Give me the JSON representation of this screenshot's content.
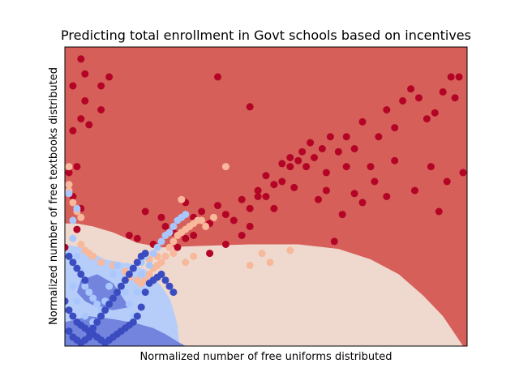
{
  "chart_data": {
    "type": "scatter",
    "title": "Predicting total enrollment in Govt schools based on incentives",
    "xlabel": "Normalized number of free uniforms distributed",
    "ylabel": "Normalized number of free textbooks distributed",
    "ticks_visible": false,
    "grid": false,
    "legend": "none",
    "classes": [
      {
        "id": 0,
        "point_color": "#3b4cc0",
        "region_color": "#7284de"
      },
      {
        "id": 1,
        "point_color": "#aac7fd",
        "region_color": "#b6cdf9"
      },
      {
        "id": 2,
        "point_color": "#f7b89c",
        "region_color": "#efd9ce"
      },
      {
        "id": 3,
        "point_color": "#b40426",
        "region_color": "#d65f5a"
      }
    ],
    "points": {
      "class_3": [
        [
          0.04,
          0.96
        ],
        [
          0.05,
          0.91
        ],
        [
          0.02,
          0.87
        ],
        [
          0.05,
          0.82
        ],
        [
          0.09,
          0.87
        ],
        [
          0.04,
          0.76
        ],
        [
          0.02,
          0.72
        ],
        [
          0.06,
          0.74
        ],
        [
          0.09,
          0.79
        ],
        [
          0.11,
          0.9
        ],
        [
          0.03,
          0.6
        ],
        [
          0.01,
          0.58
        ],
        [
          0.02,
          0.5
        ],
        [
          0.04,
          0.46
        ],
        [
          0.03,
          0.39
        ],
        [
          0.0,
          0.33
        ],
        [
          0.16,
          0.37
        ],
        [
          0.18,
          0.36
        ],
        [
          0.2,
          0.45
        ],
        [
          0.24,
          0.43
        ],
        [
          0.28,
          0.42
        ],
        [
          0.3,
          0.48
        ],
        [
          0.32,
          0.43
        ],
        [
          0.34,
          0.45
        ],
        [
          0.36,
          0.41
        ],
        [
          0.38,
          0.47
        ],
        [
          0.4,
          0.44
        ],
        [
          0.42,
          0.42
        ],
        [
          0.44,
          0.49
        ],
        [
          0.46,
          0.46
        ],
        [
          0.48,
          0.52
        ],
        [
          0.5,
          0.5
        ],
        [
          0.52,
          0.54
        ],
        [
          0.54,
          0.55
        ],
        [
          0.56,
          0.6
        ],
        [
          0.58,
          0.62
        ],
        [
          0.6,
          0.6
        ],
        [
          0.62,
          0.63
        ],
        [
          0.64,
          0.66
        ],
        [
          0.66,
          0.7
        ],
        [
          0.68,
          0.65
        ],
        [
          0.7,
          0.7
        ],
        [
          0.72,
          0.66
        ],
        [
          0.74,
          0.75
        ],
        [
          0.78,
          0.7
        ],
        [
          0.8,
          0.79
        ],
        [
          0.82,
          0.73
        ],
        [
          0.84,
          0.82
        ],
        [
          0.86,
          0.86
        ],
        [
          0.88,
          0.83
        ],
        [
          0.9,
          0.76
        ],
        [
          0.92,
          0.78
        ],
        [
          0.94,
          0.85
        ],
        [
          0.96,
          0.9
        ],
        [
          0.98,
          0.9
        ],
        [
          0.28,
          0.33
        ],
        [
          0.3,
          0.36
        ],
        [
          0.32,
          0.37
        ],
        [
          0.36,
          0.31
        ],
        [
          0.4,
          0.34
        ],
        [
          0.44,
          0.37
        ],
        [
          0.46,
          0.4
        ],
        [
          0.48,
          0.5
        ],
        [
          0.5,
          0.57
        ],
        [
          0.52,
          0.46
        ],
        [
          0.54,
          0.61
        ],
        [
          0.57,
          0.53
        ],
        [
          0.59,
          0.65
        ],
        [
          0.61,
          0.68
        ],
        [
          0.63,
          0.49
        ],
        [
          0.65,
          0.58
        ],
        [
          0.67,
          0.35
        ],
        [
          0.7,
          0.6
        ],
        [
          0.72,
          0.51
        ],
        [
          0.74,
          0.48
        ],
        [
          0.76,
          0.6
        ],
        [
          0.8,
          0.5
        ],
        [
          0.82,
          0.62
        ],
        [
          0.87,
          0.52
        ],
        [
          0.91,
          0.6
        ],
        [
          0.93,
          0.45
        ],
        [
          0.97,
          0.83
        ],
        [
          0.95,
          0.55
        ],
        [
          0.99,
          0.58
        ],
        [
          0.38,
          0.9
        ],
        [
          0.46,
          0.8
        ],
        [
          0.56,
          0.63
        ],
        [
          0.65,
          0.52
        ],
        [
          0.69,
          0.44
        ],
        [
          0.77,
          0.55
        ],
        [
          0.25,
          0.4
        ],
        [
          0.27,
          0.38
        ],
        [
          0.22,
          0.34
        ]
      ],
      "class_2": [
        [
          0.01,
          0.6
        ],
        [
          0.01,
          0.54
        ],
        [
          0.01,
          0.52
        ],
        [
          0.02,
          0.48
        ],
        [
          0.03,
          0.45
        ],
        [
          0.04,
          0.43
        ],
        [
          0.04,
          0.34
        ],
        [
          0.05,
          0.32
        ],
        [
          0.06,
          0.31
        ],
        [
          0.07,
          0.3
        ],
        [
          0.09,
          0.28
        ],
        [
          0.12,
          0.27
        ],
        [
          0.15,
          0.25
        ],
        [
          0.16,
          0.23
        ],
        [
          0.18,
          0.22
        ],
        [
          0.19,
          0.21
        ],
        [
          0.2,
          0.22
        ],
        [
          0.21,
          0.24
        ],
        [
          0.22,
          0.26
        ],
        [
          0.23,
          0.27
        ],
        [
          0.24,
          0.28
        ],
        [
          0.25,
          0.3
        ],
        [
          0.26,
          0.33
        ],
        [
          0.27,
          0.35
        ],
        [
          0.28,
          0.37
        ],
        [
          0.29,
          0.38
        ],
        [
          0.3,
          0.39
        ],
        [
          0.31,
          0.4
        ],
        [
          0.32,
          0.41
        ],
        [
          0.33,
          0.42
        ],
        [
          0.34,
          0.42
        ],
        [
          0.29,
          0.49
        ],
        [
          0.4,
          0.6
        ],
        [
          0.46,
          0.27
        ],
        [
          0.49,
          0.31
        ],
        [
          0.51,
          0.28
        ],
        [
          0.56,
          0.32
        ],
        [
          0.21,
          0.29
        ],
        [
          0.23,
          0.3
        ],
        [
          0.27,
          0.31
        ],
        [
          0.3,
          0.28
        ],
        [
          0.32,
          0.3
        ],
        [
          0.35,
          0.4
        ],
        [
          0.37,
          0.43
        ]
      ],
      "class_1": [
        [
          0.01,
          0.51
        ],
        [
          0.03,
          0.46
        ],
        [
          0.02,
          0.42
        ],
        [
          0.02,
          0.36
        ],
        [
          0.03,
          0.3
        ],
        [
          0.04,
          0.25
        ],
        [
          0.05,
          0.2
        ],
        [
          0.06,
          0.18
        ],
        [
          0.07,
          0.16
        ],
        [
          0.08,
          0.14
        ],
        [
          0.09,
          0.12
        ],
        [
          0.1,
          0.15
        ],
        [
          0.11,
          0.2
        ],
        [
          0.12,
          0.24
        ],
        [
          0.13,
          0.27
        ],
        [
          0.14,
          0.2
        ],
        [
          0.15,
          0.18
        ],
        [
          0.16,
          0.14
        ],
        [
          0.17,
          0.1
        ],
        [
          0.18,
          0.18
        ],
        [
          0.19,
          0.24
        ],
        [
          0.2,
          0.3
        ],
        [
          0.19,
          0.28
        ],
        [
          0.21,
          0.27
        ],
        [
          0.22,
          0.31
        ],
        [
          0.23,
          0.33
        ],
        [
          0.24,
          0.35
        ],
        [
          0.25,
          0.37
        ],
        [
          0.26,
          0.38
        ],
        [
          0.27,
          0.4
        ],
        [
          0.28,
          0.42
        ],
        [
          0.29,
          0.43
        ],
        [
          0.3,
          0.44
        ],
        [
          0.02,
          0.2
        ],
        [
          0.03,
          0.15
        ],
        [
          0.05,
          0.1
        ],
        [
          0.07,
          0.08
        ]
      ],
      "class_0": [
        [
          0.0,
          0.15
        ],
        [
          0.01,
          0.12
        ],
        [
          0.02,
          0.1
        ],
        [
          0.03,
          0.08
        ],
        [
          0.04,
          0.07
        ],
        [
          0.05,
          0.06
        ],
        [
          0.06,
          0.05
        ],
        [
          0.07,
          0.04
        ],
        [
          0.08,
          0.03
        ],
        [
          0.09,
          0.02
        ],
        [
          0.1,
          0.01
        ],
        [
          0.11,
          0.02
        ],
        [
          0.12,
          0.03
        ],
        [
          0.13,
          0.04
        ],
        [
          0.14,
          0.05
        ],
        [
          0.15,
          0.06
        ],
        [
          0.16,
          0.07
        ],
        [
          0.17,
          0.08
        ],
        [
          0.18,
          0.1
        ],
        [
          0.19,
          0.13
        ],
        [
          0.2,
          0.18
        ],
        [
          0.21,
          0.21
        ],
        [
          0.22,
          0.22
        ],
        [
          0.23,
          0.23
        ],
        [
          0.24,
          0.24
        ],
        [
          0.25,
          0.22
        ],
        [
          0.26,
          0.2
        ],
        [
          0.27,
          0.18
        ],
        [
          0.01,
          0.05
        ],
        [
          0.02,
          0.03
        ],
        [
          0.03,
          0.02
        ],
        [
          0.04,
          0.01
        ],
        [
          0.05,
          0.02
        ],
        [
          0.06,
          0.03
        ],
        [
          0.07,
          0.06
        ],
        [
          0.08,
          0.08
        ],
        [
          0.09,
          0.1
        ],
        [
          0.1,
          0.12
        ],
        [
          0.11,
          0.14
        ],
        [
          0.12,
          0.16
        ],
        [
          0.13,
          0.18
        ],
        [
          0.14,
          0.2
        ],
        [
          0.15,
          0.22
        ],
        [
          0.16,
          0.24
        ],
        [
          0.17,
          0.26
        ],
        [
          0.18,
          0.28
        ],
        [
          0.19,
          0.3
        ],
        [
          0.2,
          0.31
        ],
        [
          0.01,
          0.3
        ],
        [
          0.02,
          0.28
        ],
        [
          0.03,
          0.26
        ],
        [
          0.04,
          0.24
        ],
        [
          0.05,
          0.22
        ]
      ]
    }
  }
}
